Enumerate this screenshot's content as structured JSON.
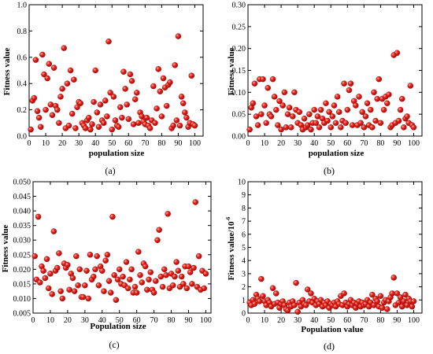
{
  "charts": [
    {
      "panel_label": "(a)",
      "chart_data": {
        "type": "scatter",
        "title": "",
        "xlabel": "population size",
        "ylabel": "Fitness value",
        "xlim": [
          0,
          105
        ],
        "ylim": [
          0,
          1.0
        ],
        "xticks": [
          0,
          10,
          20,
          30,
          40,
          50,
          60,
          70,
          80,
          90,
          100
        ],
        "xtick_labels": [
          "0",
          "10",
          "20",
          "30",
          "40",
          "50",
          "60",
          "70",
          "80",
          "90",
          "100"
        ],
        "yticks": [
          0,
          0.2,
          0.4,
          0.6,
          0.8,
          1.0
        ],
        "ytick_labels": [
          "0.0",
          "0.2",
          "0.4",
          "0.6",
          "0.8",
          "1.0"
        ],
        "grid": false,
        "marker_color": "#e8201a",
        "x": [
          1,
          2,
          3,
          4,
          5,
          6,
          7,
          8,
          9,
          10,
          11,
          12,
          13,
          14,
          15,
          16,
          17,
          18,
          19,
          20,
          21,
          22,
          23,
          24,
          25,
          26,
          27,
          28,
          29,
          30,
          31,
          32,
          33,
          34,
          35,
          36,
          37,
          38,
          39,
          40,
          41,
          42,
          43,
          44,
          45,
          46,
          47,
          48,
          49,
          50,
          51,
          52,
          53,
          54,
          55,
          56,
          57,
          58,
          59,
          60,
          61,
          62,
          63,
          64,
          65,
          66,
          67,
          68,
          69,
          70,
          71,
          72,
          73,
          74,
          75,
          76,
          77,
          78,
          79,
          80,
          81,
          82,
          83,
          84,
          85,
          86,
          87,
          88,
          89,
          90,
          91,
          92,
          93,
          94,
          95,
          96,
          97,
          98,
          99,
          100
        ],
        "y": [
          0.05,
          0.27,
          0.29,
          0.58,
          0.19,
          0.14,
          0.07,
          0.62,
          0.47,
          0.2,
          0.44,
          0.55,
          0.24,
          0.16,
          0.52,
          0.23,
          0.2,
          0.1,
          0.3,
          0.36,
          0.67,
          0.06,
          0.4,
          0.08,
          0.5,
          0.17,
          0.43,
          0.06,
          0.22,
          0.26,
          0.25,
          0.1,
          0.08,
          0.06,
          0.12,
          0.14,
          0.05,
          0.09,
          0.26,
          0.5,
          0.18,
          0.07,
          0.24,
          0.12,
          0.1,
          0.27,
          0.15,
          0.72,
          0.33,
          0.05,
          0.3,
          0.12,
          0.08,
          0.07,
          0.22,
          0.14,
          0.49,
          0.36,
          0.24,
          0.13,
          0.47,
          0.42,
          0.09,
          0.28,
          0.33,
          0.1,
          0.18,
          0.15,
          0.11,
          0.09,
          0.14,
          0.08,
          0.06,
          0.12,
          0.38,
          0.1,
          0.21,
          0.51,
          0.34,
          0.15,
          0.44,
          0.37,
          0.23,
          0.39,
          0.41,
          0.06,
          0.08,
          0.54,
          0.12,
          0.76,
          0.08,
          0.3,
          0.25,
          0.18,
          0.14,
          0.07,
          0.1,
          0.46,
          0.09,
          0.08
        ]
      }
    },
    {
      "panel_label": "(b)",
      "chart_data": {
        "type": "scatter",
        "title": "",
        "xlabel": "population size",
        "ylabel": "Fitness value",
        "xlim": [
          0,
          105
        ],
        "ylim": [
          0,
          0.3
        ],
        "xticks": [
          0,
          10,
          20,
          30,
          40,
          50,
          60,
          70,
          80,
          90,
          100
        ],
        "xtick_labels": [
          "0",
          "10",
          "20",
          "30",
          "40",
          "50",
          "60",
          "70",
          "80",
          "90",
          "100"
        ],
        "yticks": [
          0,
          0.05,
          0.1,
          0.15,
          0.2,
          0.25,
          0.3
        ],
        "ytick_labels": [
          "0.00",
          "0.05",
          "0.10",
          "0.15",
          "0.20",
          "0.25",
          "0.30"
        ],
        "grid": false,
        "marker_color": "#e8201a",
        "x": [
          1,
          2,
          3,
          4,
          5,
          6,
          7,
          8,
          9,
          10,
          11,
          12,
          13,
          14,
          15,
          16,
          17,
          18,
          19,
          20,
          21,
          22,
          23,
          24,
          25,
          26,
          27,
          28,
          29,
          30,
          31,
          32,
          33,
          34,
          35,
          36,
          37,
          38,
          39,
          40,
          41,
          42,
          43,
          44,
          45,
          46,
          47,
          48,
          49,
          50,
          51,
          52,
          53,
          54,
          55,
          56,
          57,
          58,
          59,
          60,
          61,
          62,
          63,
          64,
          65,
          66,
          67,
          68,
          69,
          70,
          71,
          72,
          73,
          74,
          75,
          76,
          77,
          78,
          79,
          80,
          81,
          82,
          83,
          84,
          85,
          86,
          87,
          88,
          89,
          90,
          91,
          92,
          93,
          94,
          95,
          96,
          97,
          98,
          99,
          100
        ],
        "y": [
          0.015,
          0.065,
          0.075,
          0.12,
          0.045,
          0.025,
          0.13,
          0.05,
          0.13,
          0.07,
          0.03,
          0.11,
          0.05,
          0.045,
          0.13,
          0.09,
          0.06,
          0.025,
          0.08,
          0.015,
          0.07,
          0.1,
          0.02,
          0.05,
          0.065,
          0.02,
          0.045,
          0.1,
          0.06,
          0.03,
          0.055,
          0.025,
          0.015,
          0.04,
          0.02,
          0.025,
          0.05,
          0.015,
          0.03,
          0.06,
          0.03,
          0.045,
          0.02,
          0.06,
          0.04,
          0.03,
          0.075,
          0.035,
          0.055,
          0.02,
          0.045,
          0.07,
          0.03,
          0.09,
          0.055,
          0.02,
          0.035,
          0.12,
          0.03,
          0.06,
          0.105,
          0.12,
          0.025,
          0.08,
          0.07,
          0.025,
          0.09,
          0.03,
          0.055,
          0.02,
          0.045,
          0.075,
          0.025,
          0.06,
          0.02,
          0.1,
          0.035,
          0.085,
          0.13,
          0.03,
          0.085,
          0.06,
          0.09,
          0.075,
          0.095,
          0.02,
          0.025,
          0.185,
          0.03,
          0.19,
          0.035,
          0.06,
          0.085,
          0.02,
          0.04,
          0.045,
          0.03,
          0.115,
          0.025,
          0.02
        ]
      }
    },
    {
      "panel_label": "(c)",
      "chart_data": {
        "type": "scatter",
        "title": "",
        "xlabel": "Population size",
        "ylabel": "Fitness value",
        "xlim": [
          0,
          103
        ],
        "ylim": [
          0.005,
          0.05
        ],
        "xticks": [
          0,
          10,
          20,
          30,
          40,
          50,
          60,
          70,
          80,
          90,
          100
        ],
        "xtick_labels": [
          "0",
          "10",
          "20",
          "30",
          "40",
          "50",
          "60",
          "70",
          "80",
          "90",
          "100"
        ],
        "yticks": [
          0.005,
          0.01,
          0.015,
          0.02,
          0.025,
          0.03,
          0.035,
          0.04,
          0.045,
          0.05
        ],
        "ytick_labels": [
          "0.005",
          "0.010",
          "0.015",
          "0.020",
          "0.025",
          "0.030",
          "0.035",
          "0.040",
          "0.045",
          "0.050"
        ],
        "grid": false,
        "marker_color": "#e8201a",
        "x": [
          1,
          2,
          3,
          4,
          5,
          6,
          7,
          8,
          9,
          10,
          11,
          12,
          13,
          14,
          15,
          16,
          17,
          18,
          19,
          20,
          21,
          22,
          23,
          24,
          25,
          26,
          27,
          28,
          29,
          30,
          31,
          32,
          33,
          34,
          35,
          36,
          37,
          38,
          39,
          40,
          41,
          42,
          43,
          44,
          45,
          46,
          47,
          48,
          49,
          50,
          51,
          52,
          53,
          54,
          55,
          56,
          57,
          58,
          59,
          60,
          61,
          62,
          63,
          64,
          65,
          66,
          67,
          68,
          69,
          70,
          71,
          72,
          73,
          74,
          75,
          76,
          77,
          78,
          79,
          80,
          81,
          82,
          83,
          84,
          85,
          86,
          87,
          88,
          89,
          90,
          91,
          92,
          93,
          94,
          95,
          96,
          97,
          98,
          99,
          100
        ],
        "y": [
          0.0245,
          0.0165,
          0.038,
          0.0155,
          0.021,
          0.0195,
          0.017,
          0.0235,
          0.0135,
          0.0185,
          0.0115,
          0.033,
          0.0195,
          0.0205,
          0.0255,
          0.0125,
          0.01,
          0.022,
          0.0205,
          0.0215,
          0.013,
          0.0185,
          0.017,
          0.0125,
          0.0245,
          0.0145,
          0.02,
          0.0105,
          0.0105,
          0.0145,
          0.0195,
          0.01,
          0.025,
          0.0165,
          0.0175,
          0.02,
          0.0245,
          0.0145,
          0.021,
          0.0195,
          0.0125,
          0.023,
          0.025,
          0.016,
          0.012,
          0.038,
          0.018,
          0.0095,
          0.0165,
          0.02,
          0.015,
          0.0175,
          0.0145,
          0.0225,
          0.0135,
          0.0165,
          0.02,
          0.012,
          0.014,
          0.012,
          0.026,
          0.018,
          0.0155,
          0.022,
          0.021,
          0.013,
          0.0165,
          0.019,
          0.013,
          0.012,
          0.016,
          0.03,
          0.0335,
          0.0175,
          0.014,
          0.02,
          0.018,
          0.039,
          0.0135,
          0.0185,
          0.0145,
          0.0175,
          0.0225,
          0.0195,
          0.014,
          0.0175,
          0.015,
          0.021,
          0.0135,
          0.021,
          0.019,
          0.015,
          0.0205,
          0.043,
          0.014,
          0.0245,
          0.013,
          0.0195,
          0.0135,
          0.0185
        ]
      }
    },
    {
      "panel_label": "(d)",
      "chart_data": {
        "type": "scatter",
        "title": "",
        "xlabel": "Population value",
        "ylabel": "Fitness value/10",
        "ylabel_superscript": "-6",
        "xlim": [
          0,
          105
        ],
        "ylim": [
          0,
          10
        ],
        "xticks": [
          0,
          10,
          20,
          30,
          40,
          50,
          60,
          70,
          80,
          90,
          100
        ],
        "xtick_labels": [
          "0",
          "10",
          "20",
          "30",
          "40",
          "50",
          "60",
          "70",
          "80",
          "90",
          "100"
        ],
        "yticks": [
          0,
          1,
          2,
          3,
          4,
          5,
          6,
          7,
          8,
          9,
          10
        ],
        "ytick_labels": [
          "0",
          "1",
          "2",
          "3",
          "4",
          "5",
          "6",
          "7",
          "8",
          "9",
          "10"
        ],
        "grid": false,
        "marker_color": "#e8201a",
        "x": [
          1,
          2,
          3,
          4,
          5,
          6,
          7,
          8,
          9,
          10,
          11,
          12,
          13,
          14,
          15,
          16,
          17,
          18,
          19,
          20,
          21,
          22,
          23,
          24,
          25,
          26,
          27,
          28,
          29,
          30,
          31,
          32,
          33,
          34,
          35,
          36,
          37,
          38,
          39,
          40,
          41,
          42,
          43,
          44,
          45,
          46,
          47,
          48,
          49,
          50,
          51,
          52,
          53,
          54,
          55,
          56,
          57,
          58,
          59,
          60,
          61,
          62,
          63,
          64,
          65,
          66,
          67,
          68,
          69,
          70,
          71,
          72,
          73,
          74,
          75,
          76,
          77,
          78,
          79,
          80,
          81,
          82,
          83,
          84,
          85,
          86,
          87,
          88,
          89,
          90,
          91,
          92,
          93,
          94,
          95,
          96,
          97,
          98,
          99,
          100
        ],
        "y": [
          0.8,
          0.6,
          1.0,
          0.7,
          1.4,
          1.1,
          0.9,
          2.6,
          1.3,
          0.9,
          0.6,
          1.0,
          0.8,
          0.5,
          1.9,
          0.7,
          1.5,
          0.8,
          0.4,
          0.7,
          0.9,
          0.6,
          0.3,
          0.2,
          0.8,
          0.5,
          0.9,
          0.6,
          2.3,
          0.1,
          0.8,
          0.5,
          1.0,
          0.7,
          0.6,
          1.8,
          0.9,
          1.5,
          0.8,
          1.1,
          0.6,
          0.9,
          0.7,
          1.0,
          0.5,
          0.8,
          0.6,
          0.9,
          0.4,
          0.7,
          0.6,
          0.8,
          0.5,
          0.9,
          0.7,
          1.3,
          0.6,
          1.5,
          0.8,
          0.5,
          0.7,
          1.0,
          0.6,
          0.8,
          0.4,
          0.7,
          0.9,
          0.5,
          0.8,
          0.6,
          0.7,
          1.0,
          0.5,
          0.8,
          1.4,
          0.6,
          1.1,
          0.9,
          0.5,
          1.3,
          0.4,
          0.8,
          1.0,
          0.3,
          0.9,
          1.2,
          1.5,
          2.7,
          0.6,
          1.5,
          0.8,
          1.2,
          0.5,
          0.9,
          1.4,
          0.6,
          1.1,
          0.9,
          0.5,
          0.9
        ]
      }
    }
  ]
}
